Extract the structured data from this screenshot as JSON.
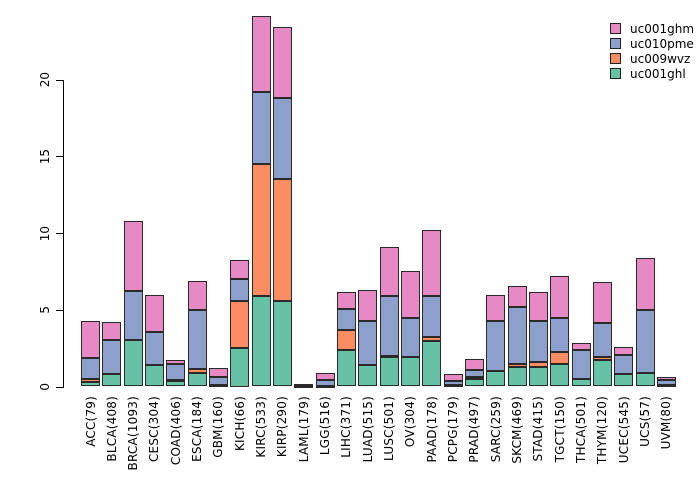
{
  "figure": {
    "background": "#ffffff"
  },
  "legend": {
    "items": [
      {
        "label": "uc001ghm",
        "color": "#E78AC3"
      },
      {
        "label": "uc010pme",
        "color": "#8DA0CB"
      },
      {
        "label": "uc009wvz",
        "color": "#FC8D62"
      },
      {
        "label": "uc001ghl",
        "color": "#66C2A5"
      }
    ]
  },
  "chart_data": {
    "type": "bar",
    "stacked": true,
    "title": "",
    "xlabel": "",
    "ylabel": "",
    "grid": false,
    "legend_position": "top-right",
    "ylim": [
      0,
      24.3
    ],
    "yticks": [
      0,
      5,
      10,
      15,
      20
    ],
    "categories": [
      "ACC(79)",
      "BLCA(408)",
      "BRCA(1093)",
      "CESC(304)",
      "COAD(406)",
      "ESCA(184)",
      "GBM(160)",
      "KICH(66)",
      "KIRC(533)",
      "KIRP(290)",
      "LAML(179)",
      "LGG(516)",
      "LIHC(371)",
      "LUAD(515)",
      "LUSC(501)",
      "OV(304)",
      "PAAD(178)",
      "PCPG(179)",
      "PRAD(497)",
      "SARC(259)",
      "SKCM(469)",
      "STAD(415)",
      "TGCT(150)",
      "THCA(501)",
      "THYM(120)",
      "UCEC(545)",
      "UCS(57)",
      "UVM(80)"
    ],
    "series": [
      {
        "name": "uc001ghl",
        "color": "#66C2A5",
        "values": [
          0.3,
          0.8,
          3.05,
          1.4,
          0.4,
          0.85,
          0.1,
          2.5,
          5.9,
          5.6,
          0.05,
          0.05,
          2.35,
          1.4,
          1.95,
          1.9,
          2.95,
          0.1,
          0.5,
          1.0,
          1.3,
          1.3,
          1.45,
          0.5,
          1.75,
          0.8,
          0.85,
          0.12
        ]
      },
      {
        "name": "uc009wvz",
        "color": "#FC8D62",
        "values": [
          0.2,
          0,
          0,
          0,
          0.05,
          0.3,
          0,
          3.1,
          8.6,
          7.9,
          0,
          0,
          1.3,
          0,
          0.05,
          0,
          0.25,
          0,
          0.15,
          0,
          0.15,
          0.3,
          0.8,
          0,
          0.2,
          0,
          0,
          0
        ]
      },
      {
        "name": "uc010pme",
        "color": "#8DA0CB",
        "values": [
          1.35,
          2.25,
          3.2,
          2.15,
          1.0,
          3.85,
          0.55,
          1.4,
          4.7,
          5.3,
          0.05,
          0.4,
          1.4,
          2.85,
          3.9,
          2.55,
          2.7,
          0.25,
          0.45,
          3.25,
          3.75,
          2.65,
          2.2,
          1.85,
          2.2,
          1.25,
          4.15,
          0.28
        ]
      },
      {
        "name": "uc001ghm",
        "color": "#E78AC3",
        "values": [
          2.4,
          1.15,
          4.5,
          2.4,
          0.3,
          1.85,
          0.55,
          1.25,
          4.95,
          4.65,
          0.05,
          0.4,
          1.1,
          2.05,
          3.2,
          3.05,
          4.3,
          0.45,
          0.7,
          1.7,
          1.35,
          1.9,
          2.75,
          0.5,
          2.65,
          0.55,
          3.35,
          0.2
        ]
      }
    ]
  }
}
